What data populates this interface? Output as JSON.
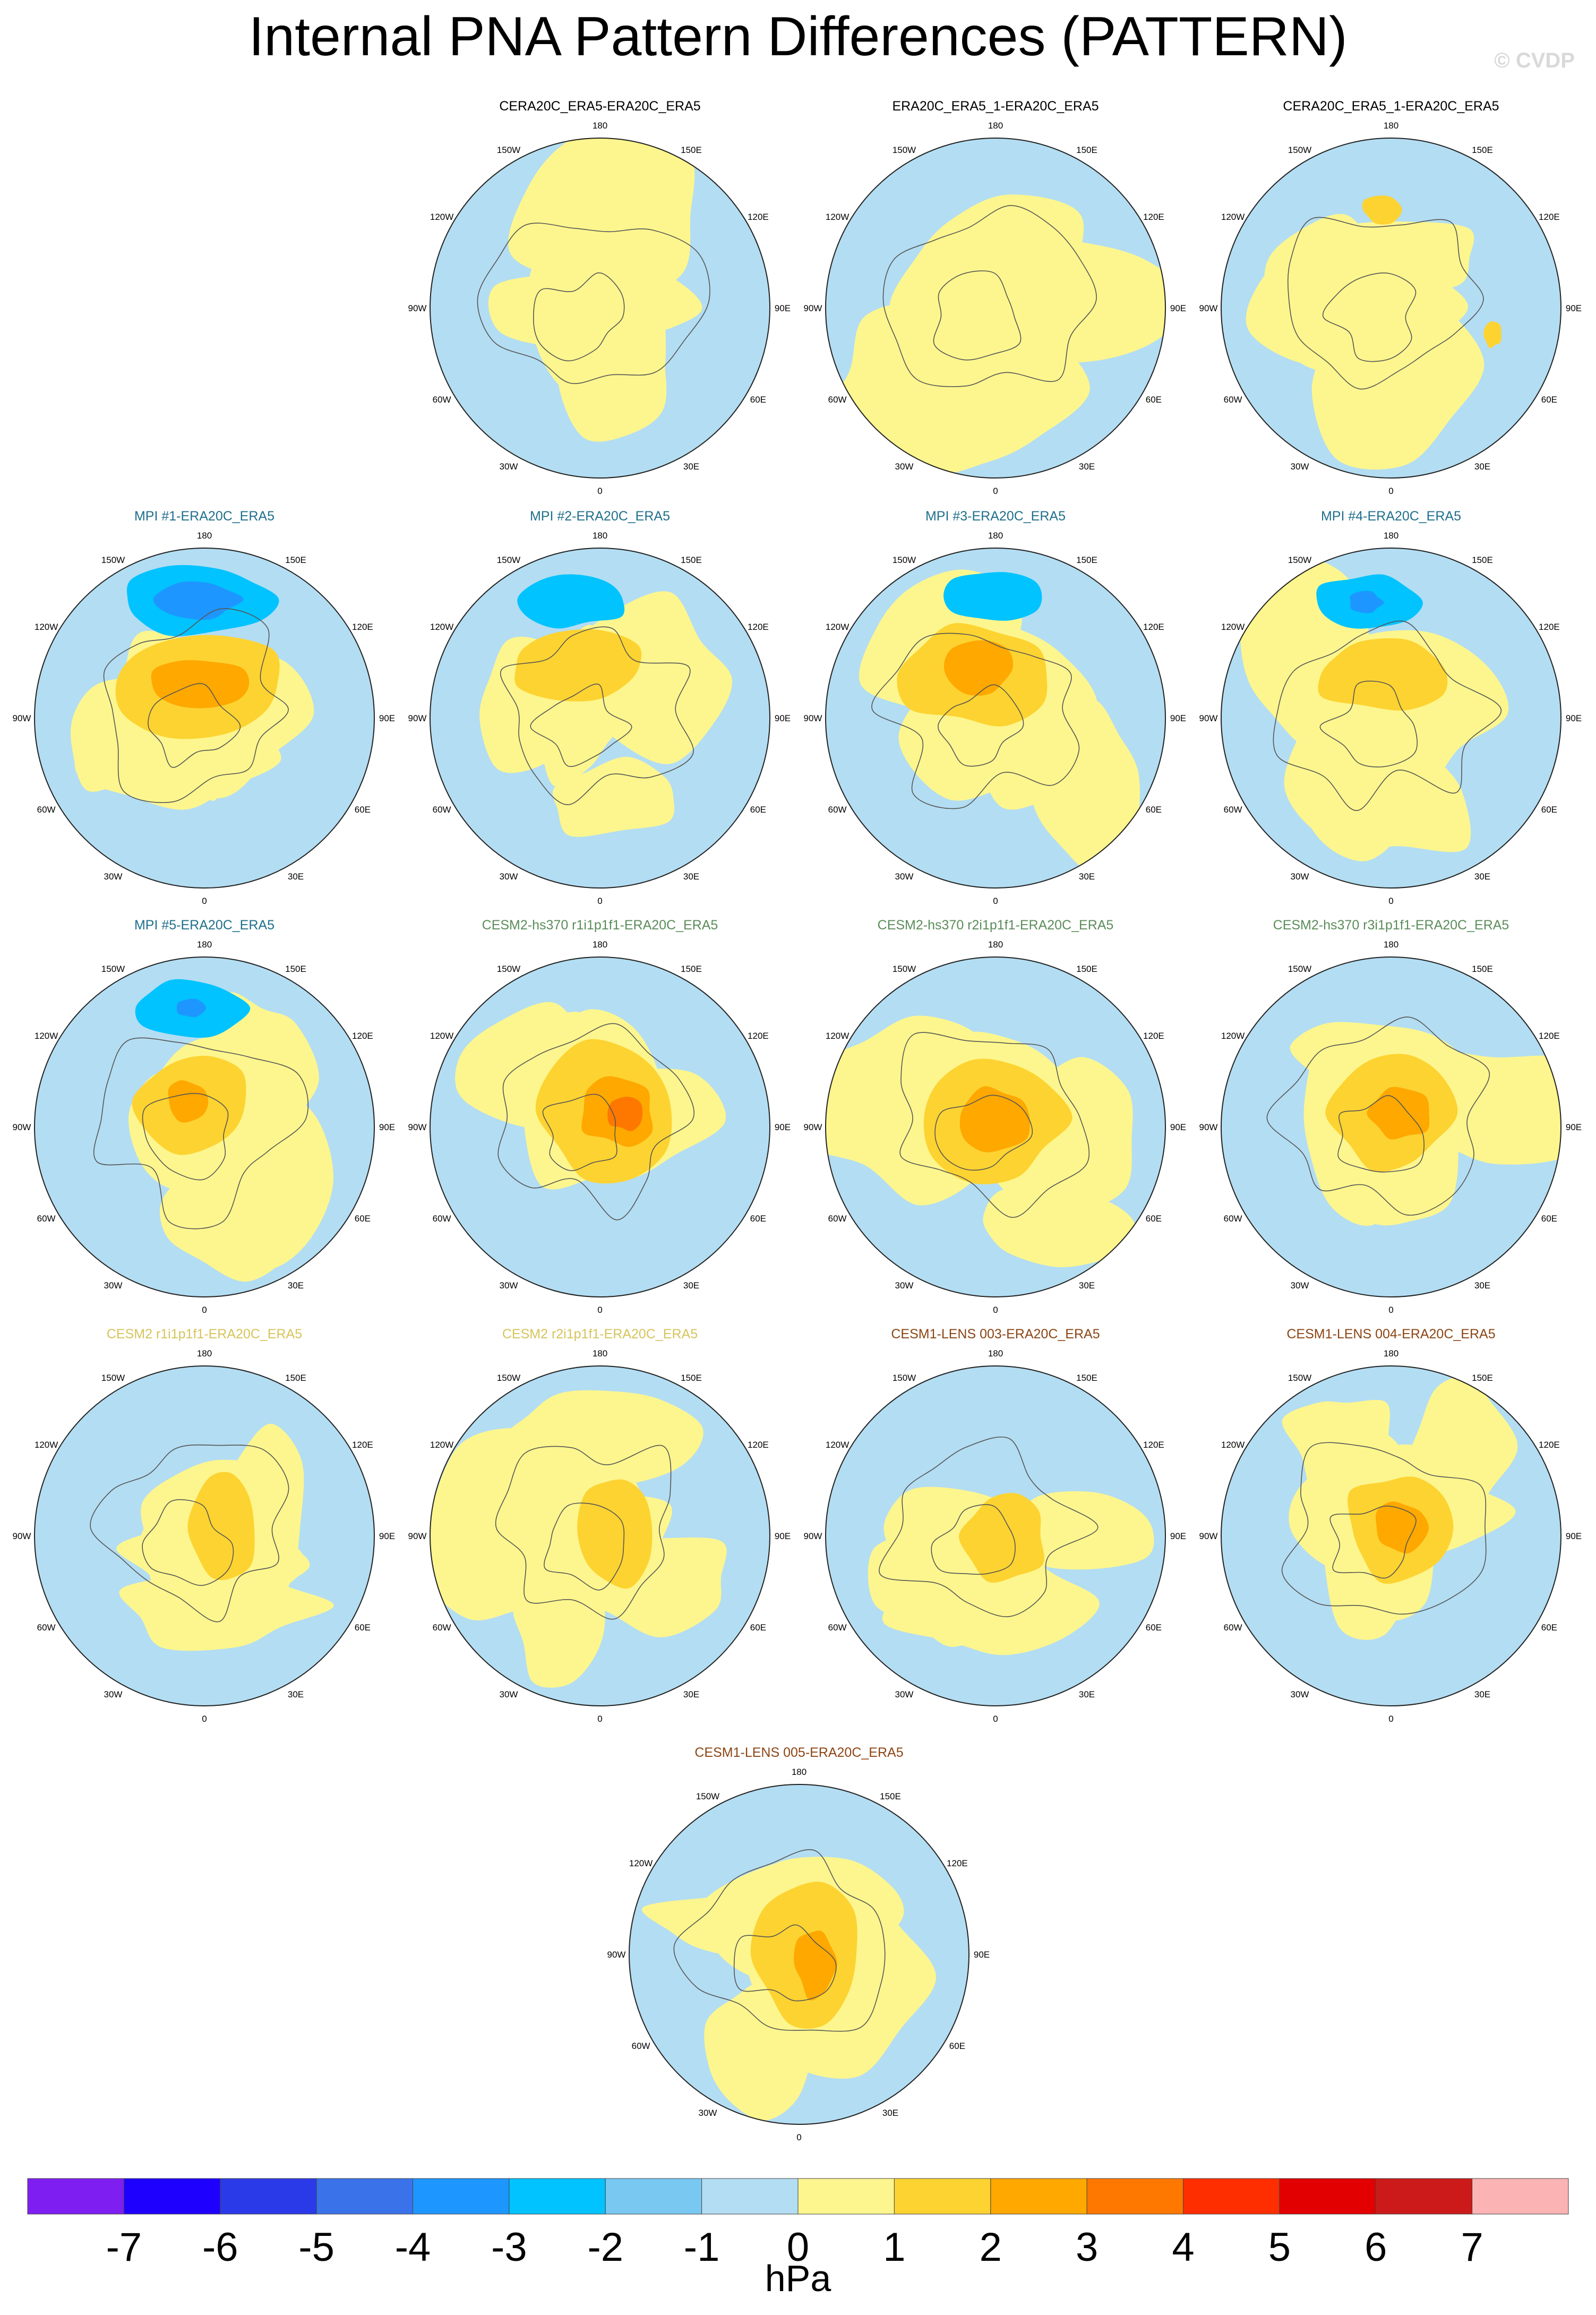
{
  "title": "Internal PNA Pattern Differences (PATTERN)",
  "watermark": "© CVDP",
  "colors": {
    "ocean_zero_neg": "#b3ddf2",
    "zero_pos": "#fdf68e",
    "coast": "#555555",
    "title_black": "#000000",
    "title_mpi": "#1f6f8b",
    "title_cesm2hs": "#5b8c5a",
    "title_cesm2": "#d6c45a",
    "title_cesm1": "#8b4513"
  },
  "lon_labels": [
    "180",
    "150E",
    "120E",
    "90E",
    "60E",
    "30E",
    "0",
    "30W",
    "60W",
    "90W",
    "120W",
    "150W"
  ],
  "panels": [
    {
      "title": "CERA20C_ERA5-ERA20C_ERA5",
      "color": "#000000",
      "pattern": 1,
      "anomalies": []
    },
    {
      "title": "ERA20C_ERA5_1-ERA20C_ERA5",
      "color": "#000000",
      "pattern": 2,
      "anomalies": []
    },
    {
      "title": "CERA20C_ERA5_1-ERA20C_ERA5",
      "color": "#000000",
      "pattern": 3,
      "anomalies": [
        {
          "value": 1.5,
          "dx": -0.05,
          "dy": -0.58,
          "rx": 0.12,
          "ry": 0.08
        },
        {
          "value": 1.5,
          "dx": 0.6,
          "dy": 0.15,
          "rx": 0.05,
          "ry": 0.08
        }
      ]
    },
    {
      "title": "MPI #1-ERA20C_ERA5",
      "color": "#1f6f8b",
      "pattern": 4,
      "anomalies": [
        {
          "value": -2.5,
          "dx": -0.05,
          "dy": -0.7,
          "rx": 0.45,
          "ry": 0.2
        },
        {
          "value": -3.5,
          "dx": -0.05,
          "dy": -0.7,
          "rx": 0.25,
          "ry": 0.11
        },
        {
          "value": 1.5,
          "dx": -0.05,
          "dy": -0.2,
          "rx": 0.5,
          "ry": 0.3
        },
        {
          "value": 2.5,
          "dx": -0.05,
          "dy": -0.2,
          "rx": 0.3,
          "ry": 0.15
        }
      ]
    },
    {
      "title": "MPI #2-ERA20C_ERA5",
      "color": "#1f6f8b",
      "pattern": 5,
      "anomalies": [
        {
          "value": -2.5,
          "dx": -0.15,
          "dy": -0.7,
          "rx": 0.3,
          "ry": 0.16
        },
        {
          "value": 1.5,
          "dx": -0.15,
          "dy": -0.3,
          "rx": 0.4,
          "ry": 0.2
        }
      ]
    },
    {
      "title": "MPI #3-ERA20C_ERA5",
      "color": "#1f6f8b",
      "pattern": 6,
      "anomalies": [
        {
          "value": -2.5,
          "dx": 0.0,
          "dy": -0.72,
          "rx": 0.28,
          "ry": 0.15
        },
        {
          "value": 1.5,
          "dx": -0.1,
          "dy": -0.25,
          "rx": 0.45,
          "ry": 0.3
        },
        {
          "value": 2.5,
          "dx": -0.1,
          "dy": -0.3,
          "rx": 0.2,
          "ry": 0.16
        }
      ]
    },
    {
      "title": "MPI #4-ERA20C_ERA5",
      "color": "#1f6f8b",
      "pattern": 7,
      "anomalies": [
        {
          "value": -2.5,
          "dx": -0.15,
          "dy": -0.68,
          "rx": 0.3,
          "ry": 0.16
        },
        {
          "value": -3.5,
          "dx": -0.15,
          "dy": -0.68,
          "rx": 0.1,
          "ry": 0.06
        },
        {
          "value": 1.5,
          "dx": -0.05,
          "dy": -0.25,
          "rx": 0.4,
          "ry": 0.2
        }
      ]
    },
    {
      "title": "MPI #5-ERA20C_ERA5",
      "color": "#1f6f8b",
      "pattern": 8,
      "anomalies": [
        {
          "value": -2.5,
          "dx": -0.08,
          "dy": -0.7,
          "rx": 0.32,
          "ry": 0.16
        },
        {
          "value": -3.5,
          "dx": -0.08,
          "dy": -0.7,
          "rx": 0.08,
          "ry": 0.05
        },
        {
          "value": 1.5,
          "dx": -0.05,
          "dy": -0.15,
          "rx": 0.33,
          "ry": 0.3
        },
        {
          "value": 2.5,
          "dx": -0.1,
          "dy": -0.15,
          "rx": 0.12,
          "ry": 0.12
        }
      ]
    },
    {
      "title": "CESM2-hs370 r1i1p1f1-ERA20C_ERA5",
      "color": "#5b8c5a",
      "pattern": 9,
      "anomalies": [
        {
          "value": 1.5,
          "dx": 0.05,
          "dy": -0.1,
          "rx": 0.38,
          "ry": 0.38
        },
        {
          "value": 2.5,
          "dx": 0.1,
          "dy": -0.1,
          "rx": 0.22,
          "ry": 0.2
        },
        {
          "value": 3.5,
          "dx": 0.15,
          "dy": -0.08,
          "rx": 0.1,
          "ry": 0.1
        }
      ]
    },
    {
      "title": "CESM2-hs370 r2i1p1f1-ERA20C_ERA5",
      "color": "#5b8c5a",
      "pattern": 10,
      "anomalies": [
        {
          "value": 1.5,
          "dx": 0.0,
          "dy": -0.05,
          "rx": 0.4,
          "ry": 0.35
        },
        {
          "value": 2.5,
          "dx": 0.0,
          "dy": -0.05,
          "rx": 0.2,
          "ry": 0.18
        }
      ]
    },
    {
      "title": "CESM2-hs370 r3i1p1f1-ERA20C_ERA5",
      "color": "#5b8c5a",
      "pattern": 11,
      "anomalies": [
        {
          "value": 1.5,
          "dx": 0.0,
          "dy": -0.08,
          "rx": 0.35,
          "ry": 0.35
        },
        {
          "value": 2.5,
          "dx": 0.05,
          "dy": -0.08,
          "rx": 0.18,
          "ry": 0.16
        }
      ]
    },
    {
      "title": "CESM2 r1i1p1f1-ERA20C_ERA5",
      "color": "#d6c45a",
      "pattern": 12,
      "anomalies": [
        {
          "value": 1.5,
          "dx": 0.1,
          "dy": -0.05,
          "rx": 0.2,
          "ry": 0.33
        }
      ]
    },
    {
      "title": "CESM2 r2i1p1f1-ERA20C_ERA5",
      "color": "#d6c45a",
      "pattern": 13,
      "anomalies": [
        {
          "value": 1.5,
          "dx": 0.1,
          "dy": -0.05,
          "rx": 0.22,
          "ry": 0.33
        }
      ]
    },
    {
      "title": "CESM1-LENS 003-ERA20C_ERA5",
      "color": "#8b4513",
      "pattern": 14,
      "anomalies": [
        {
          "value": 1.5,
          "dx": 0.05,
          "dy": 0.0,
          "rx": 0.25,
          "ry": 0.25
        }
      ]
    },
    {
      "title": "CESM1-LENS 004-ERA20C_ERA5",
      "color": "#8b4513",
      "pattern": 15,
      "anomalies": [
        {
          "value": 1.5,
          "dx": 0.05,
          "dy": -0.05,
          "rx": 0.32,
          "ry": 0.32
        },
        {
          "value": 2.5,
          "dx": 0.05,
          "dy": -0.05,
          "rx": 0.15,
          "ry": 0.15
        }
      ]
    },
    {
      "title": "CESM1-LENS 005-ERA20C_ERA5",
      "color": "#8b4513",
      "pattern": 16,
      "anomalies": [
        {
          "value": 1.5,
          "dx": 0.05,
          "dy": 0.0,
          "rx": 0.3,
          "ry": 0.4
        },
        {
          "value": 2.5,
          "dx": 0.1,
          "dy": 0.05,
          "rx": 0.12,
          "ry": 0.2
        }
      ]
    }
  ],
  "colorbar": {
    "unit": "hPa",
    "ticks": [
      "-7",
      "-6",
      "-5",
      "-4",
      "-3",
      "-2",
      "-1",
      "0",
      "1",
      "2",
      "3",
      "4",
      "5",
      "6",
      "7"
    ],
    "colors": [
      "#7e1ef0",
      "#1e00ff",
      "#2b3ae8",
      "#3a72ea",
      "#1e96ff",
      "#00c3ff",
      "#78c8f2",
      "#b3ddf2",
      "#fdf68e",
      "#fdd331",
      "#fea800",
      "#fe7800",
      "#fe2e00",
      "#e30000",
      "#cc1a1a",
      "#fbb3b3"
    ]
  }
}
